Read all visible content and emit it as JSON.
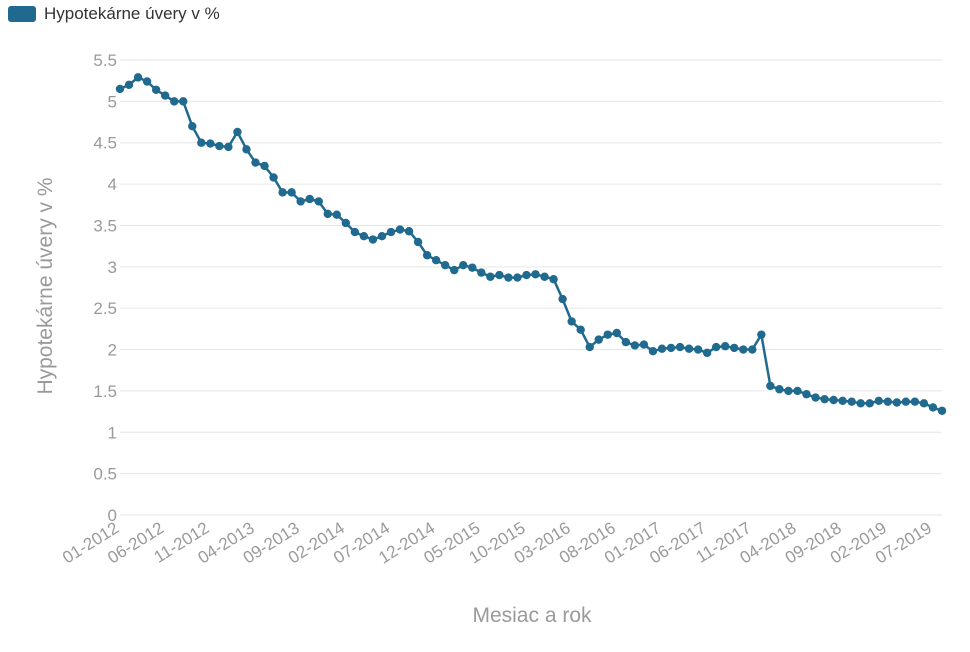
{
  "chart_data": {
    "type": "line",
    "legend": {
      "label": "Hypotekárne úvery v %",
      "placement": "top-left"
    },
    "xlabel": "Mesiac a rok",
    "ylabel": "Hypotekárne úvery v %",
    "ylim": [
      0,
      5.5
    ],
    "yticks": [
      "0",
      "0.5",
      "1",
      "1.5",
      "2",
      "2.5",
      "3",
      "3.5",
      "4",
      "4.5",
      "5",
      "5.5"
    ],
    "xticks": [
      "01-2012",
      "06-2012",
      "11-2012",
      "04-2013",
      "09-2013",
      "02-2014",
      "07-2014",
      "12-2014",
      "05-2015",
      "10-2015",
      "03-2016",
      "08-2016",
      "01-2017",
      "06-2017",
      "11-2017",
      "04-2018",
      "09-2018",
      "02-2019",
      "07-2019"
    ],
    "grid": true,
    "color": "#1f6a8e",
    "series": [
      {
        "name": "Hypotekárne úvery v %",
        "x": [
          "01-2012",
          "02-2012",
          "03-2012",
          "04-2012",
          "05-2012",
          "06-2012",
          "07-2012",
          "08-2012",
          "09-2012",
          "10-2012",
          "11-2012",
          "12-2012",
          "01-2013",
          "02-2013",
          "03-2013",
          "04-2013",
          "05-2013",
          "06-2013",
          "07-2013",
          "08-2013",
          "09-2013",
          "10-2013",
          "11-2013",
          "12-2013",
          "01-2014",
          "02-2014",
          "03-2014",
          "04-2014",
          "05-2014",
          "06-2014",
          "07-2014",
          "08-2014",
          "09-2014",
          "10-2014",
          "11-2014",
          "12-2014",
          "01-2015",
          "02-2015",
          "03-2015",
          "04-2015",
          "05-2015",
          "06-2015",
          "07-2015",
          "08-2015",
          "09-2015",
          "10-2015",
          "11-2015",
          "12-2015",
          "01-2016",
          "02-2016",
          "03-2016",
          "04-2016",
          "05-2016",
          "06-2016",
          "07-2016",
          "08-2016",
          "09-2016",
          "10-2016",
          "11-2016",
          "12-2016",
          "01-2017",
          "02-2017",
          "03-2017",
          "04-2017",
          "05-2017",
          "06-2017",
          "07-2017",
          "08-2017",
          "09-2017",
          "10-2017",
          "11-2017",
          "12-2017",
          "01-2018",
          "02-2018",
          "03-2018",
          "04-2018",
          "05-2018",
          "06-2018",
          "07-2018",
          "08-2018",
          "09-2018",
          "10-2018",
          "11-2018",
          "12-2018",
          "01-2019",
          "02-2019",
          "03-2019",
          "04-2019",
          "05-2019",
          "06-2019",
          "07-2019",
          "08-2019"
        ],
        "values": [
          5.15,
          5.2,
          5.29,
          5.24,
          5.14,
          5.07,
          5.0,
          5.0,
          4.7,
          4.5,
          4.49,
          4.46,
          4.45,
          4.63,
          4.42,
          4.26,
          4.22,
          4.08,
          3.9,
          3.9,
          3.79,
          3.82,
          3.79,
          3.64,
          3.63,
          3.53,
          3.42,
          3.37,
          3.33,
          3.37,
          3.42,
          3.45,
          3.43,
          3.3,
          3.14,
          3.08,
          3.02,
          2.96,
          3.02,
          2.99,
          2.93,
          2.88,
          2.9,
          2.87,
          2.87,
          2.9,
          2.91,
          2.88,
          2.85,
          2.61,
          2.34,
          2.24,
          2.03,
          2.12,
          2.18,
          2.2,
          2.09,
          2.05,
          2.06,
          1.98,
          2.01,
          2.02,
          2.03,
          2.01,
          2.0,
          1.96,
          2.03,
          2.04,
          2.02,
          2.0,
          2.0,
          2.18,
          1.56,
          1.52,
          1.5,
          1.5,
          1.46,
          1.42,
          1.4,
          1.39,
          1.38,
          1.37,
          1.35,
          1.35,
          1.38,
          1.37,
          1.36,
          1.37,
          1.37,
          1.35,
          1.3,
          1.26
        ]
      }
    ]
  }
}
